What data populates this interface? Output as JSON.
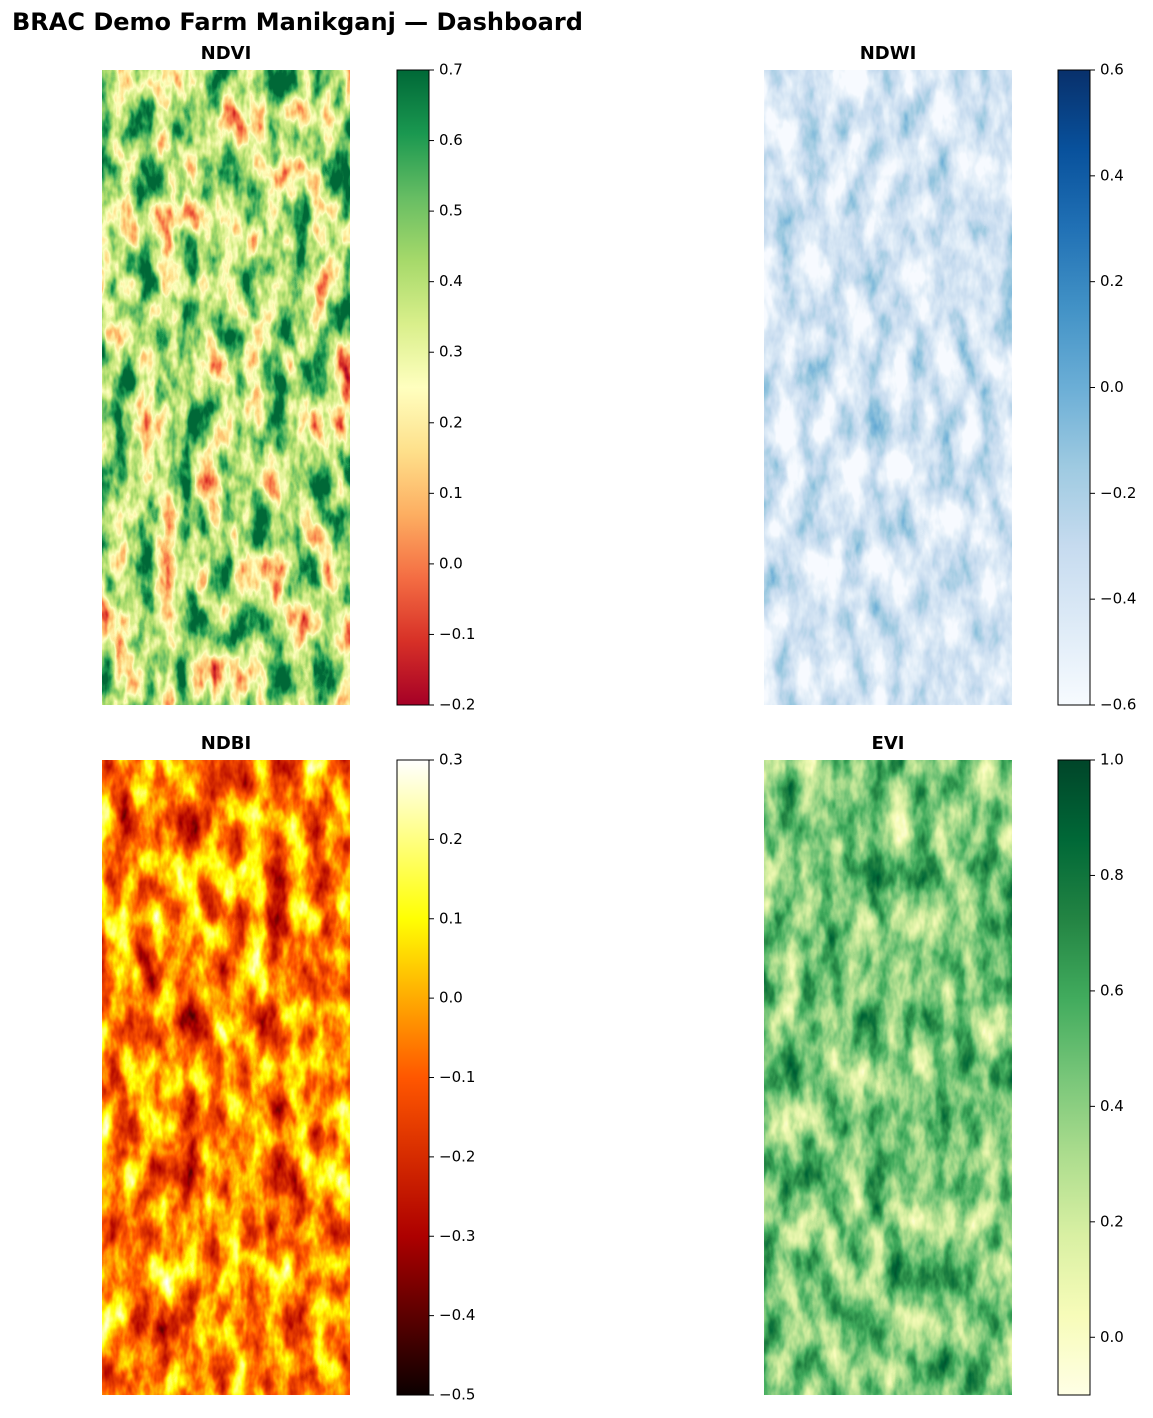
{
  "title": "BRAC Demo Farm Manikganj — Dashboard",
  "chart_data": [
    {
      "type": "heatmap",
      "title": "NDVI",
      "colormap": [
        "#a50026",
        "#d73027",
        "#f46d43",
        "#fdae61",
        "#fee08b",
        "#ffffbf",
        "#d9ef8b",
        "#a6d96a",
        "#66bd63",
        "#1a9850",
        "#006837"
      ],
      "clim": [
        -0.2,
        0.7
      ],
      "cticks": [
        {
          "value": -0.2,
          "label": "−0.2"
        },
        {
          "value": -0.1,
          "label": "−0.1"
        },
        {
          "value": 0,
          "label": "0.0"
        },
        0.1,
        0.2,
        0.3,
        0.4,
        0.5,
        0.6,
        0.7
      ]
    },
    {
      "type": "heatmap",
      "title": "NDWI",
      "colormap": [
        "#f7fbff",
        "#deebf7",
        "#c6dbef",
        "#9ecae1",
        "#6baed6",
        "#4292c6",
        "#2171b5",
        "#08519c",
        "#08306b"
      ],
      "clim": [
        -0.6,
        0.6
      ],
      "cticks": [
        {
          "value": -0.6,
          "label": "−0.6"
        },
        {
          "value": -0.4,
          "label": "−0.4"
        },
        {
          "value": -0.2,
          "label": "−0.2"
        },
        {
          "value": 0,
          "label": "0.0"
        },
        0.2,
        0.4,
        0.6
      ]
    },
    {
      "type": "heatmap",
      "title": "NDBI",
      "colormap": [
        "#0b0000",
        "#ad0000",
        "#ff5700",
        "#ffff03",
        "#ffffff"
      ],
      "clim": [
        -0.5,
        0.3
      ],
      "cticks": [
        {
          "value": -0.5,
          "label": "−0.5"
        },
        {
          "value": -0.4,
          "label": "−0.4"
        },
        {
          "value": -0.3,
          "label": "−0.3"
        },
        {
          "value": -0.2,
          "label": "−0.2"
        },
        {
          "value": -0.1,
          "label": "−0.1"
        },
        {
          "value": 0,
          "label": "0.0"
        },
        0.1,
        0.2,
        0.3
      ]
    },
    {
      "type": "heatmap",
      "title": "EVI",
      "colormap": [
        "#ffffe5",
        "#f7fcb9",
        "#d9f0a3",
        "#addd8e",
        "#78c679",
        "#41ab5d",
        "#238443",
        "#006837",
        "#004529"
      ],
      "clim": [
        -0.1,
        1.0
      ],
      "cticks": [
        {
          "value": 0,
          "label": "0.0"
        },
        0.2,
        0.4,
        0.6,
        0.8,
        {
          "value": 1,
          "label": "1.0"
        }
      ]
    }
  ]
}
